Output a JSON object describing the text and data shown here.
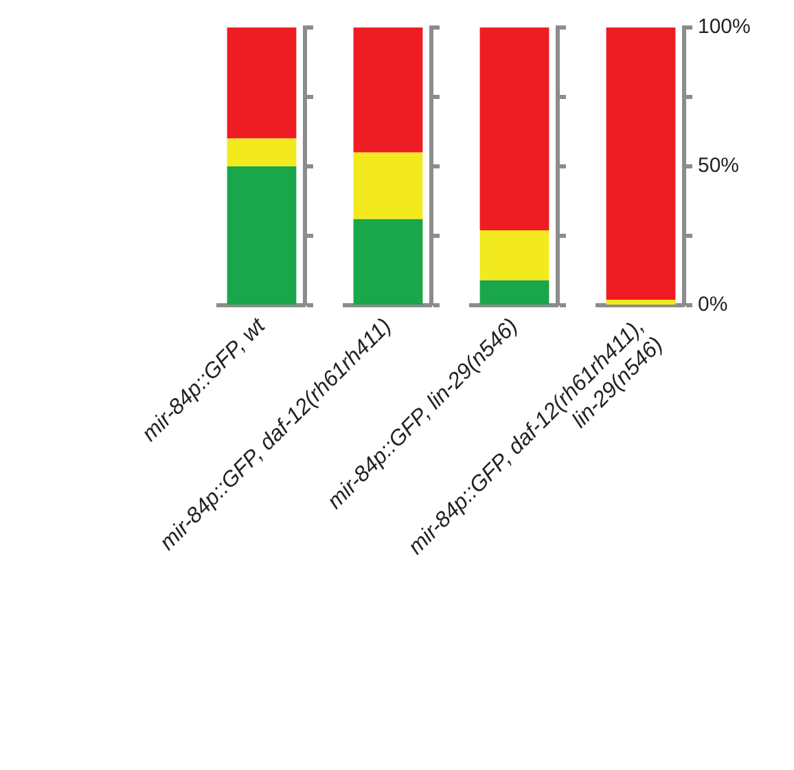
{
  "chart_data": [
    {
      "type": "bar",
      "stacked": true,
      "categories": [
        "mir-84p::GFP, wt"
      ],
      "tick_labels": "x",
      "series": [
        {
          "color": "#1aa64a",
          "values": [
            50
          ]
        },
        {
          "color": "#f2ea1e",
          "values": [
            10
          ]
        },
        {
          "color": "#ee1d24",
          "values": [
            40
          ]
        }
      ],
      "ylim": [
        0,
        100
      ],
      "yticks": [
        {
          "value": 0,
          "label": null
        },
        {
          "value": 25,
          "label": null
        },
        {
          "value": 50,
          "label": null
        },
        {
          "value": 75,
          "label": null
        },
        {
          "value": 100,
          "label": null
        }
      ]
    },
    {
      "type": "bar",
      "stacked": true,
      "categories": [
        "mir-84p::GFP, daf-12(rh61rh411)"
      ],
      "tick_labels": "x",
      "series": [
        {
          "color": "#1aa64a",
          "values": [
            31
          ]
        },
        {
          "color": "#f2ea1e",
          "values": [
            24
          ]
        },
        {
          "color": "#ee1d24",
          "values": [
            45
          ]
        }
      ],
      "ylim": [
        0,
        100
      ],
      "yticks": [
        {
          "value": 0,
          "label": null
        },
        {
          "value": 25,
          "label": null
        },
        {
          "value": 50,
          "label": null
        },
        {
          "value": 75,
          "label": null
        },
        {
          "value": 100,
          "label": null
        }
      ]
    },
    {
      "type": "bar",
      "stacked": true,
      "categories": [
        "mir-84p::GFP, lin-29(n546)"
      ],
      "tick_labels": "x",
      "series": [
        {
          "color": "#1aa64a",
          "values": [
            9
          ]
        },
        {
          "color": "#f2ea1e",
          "values": [
            18
          ]
        },
        {
          "color": "#ee1d24",
          "values": [
            73
          ]
        }
      ],
      "ylim": [
        0,
        100
      ],
      "yticks": [
        {
          "value": 0,
          "label": null
        },
        {
          "value": 25,
          "label": null
        },
        {
          "value": 50,
          "label": null
        },
        {
          "value": 75,
          "label": null
        },
        {
          "value": 100,
          "label": null
        }
      ]
    },
    {
      "type": "bar",
      "stacked": true,
      "categories": [
        "mir-84p::GFP, daf-12(rh61rh411), lin-29(n546)"
      ],
      "series": [
        {
          "color": "#1aa64a",
          "values": [
            0
          ]
        },
        {
          "color": "#f2ea1e",
          "values": [
            2
          ]
        },
        {
          "color": "#ee1d24",
          "values": [
            98
          ]
        }
      ],
      "ylim": [
        0,
        100
      ],
      "yticks": [
        {
          "value": 0,
          "label": "0%"
        },
        {
          "value": 25,
          "label": null
        },
        {
          "value": 50,
          "label": "50%"
        },
        {
          "value": 75,
          "label": null
        },
        {
          "value": 100,
          "label": "100%"
        }
      ]
    }
  ]
}
